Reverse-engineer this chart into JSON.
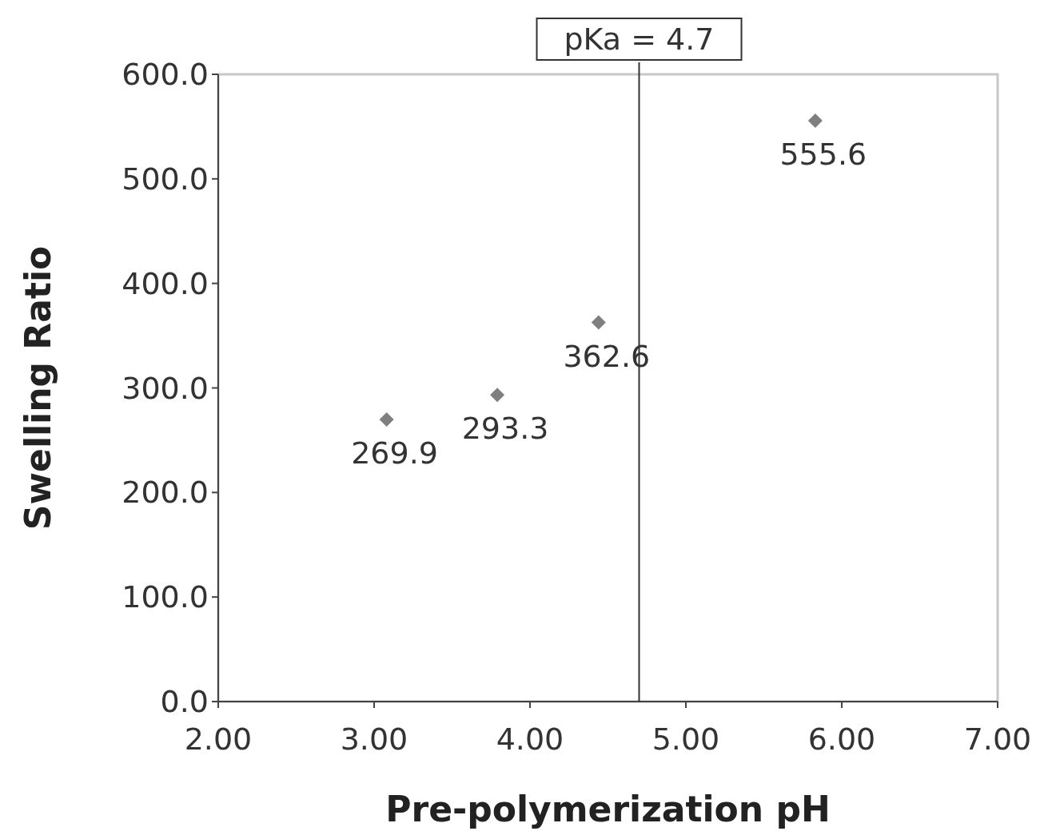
{
  "chart_data": {
    "type": "scatter",
    "xlabel": "Pre-polymerization pH",
    "ylabel": "Swelling Ratio",
    "x": [
      3.08,
      3.79,
      4.44,
      5.83
    ],
    "values": [
      269.9,
      293.3,
      362.6,
      555.6
    ],
    "color": "#7f7f7f",
    "marker": "diamond",
    "data_labels": true,
    "xlim": [
      2,
      7
    ],
    "xticks": [
      {
        "value": 2,
        "label": "2.00"
      },
      {
        "value": 3,
        "label": "3.00"
      },
      {
        "value": 4,
        "label": "4.00"
      },
      {
        "value": 5,
        "label": "5.00"
      },
      {
        "value": 6,
        "label": "6.00"
      },
      {
        "value": 7,
        "label": "7.00"
      }
    ],
    "ylim": [
      0,
      600
    ],
    "yticks": [
      {
        "value": 0,
        "label": "0.0"
      },
      {
        "value": 100,
        "label": "100.0"
      },
      {
        "value": 200,
        "label": "200.0"
      },
      {
        "value": 300,
        "label": "300.0"
      },
      {
        "value": 400,
        "label": "400.0"
      },
      {
        "value": 500,
        "label": "500.0"
      },
      {
        "value": 600,
        "label": "600.0"
      }
    ],
    "ref_lines": [
      {
        "axis": "x",
        "value": 4.7,
        "label": "pKa = 4.7",
        "color": "#333333"
      }
    ],
    "grid": false
  }
}
